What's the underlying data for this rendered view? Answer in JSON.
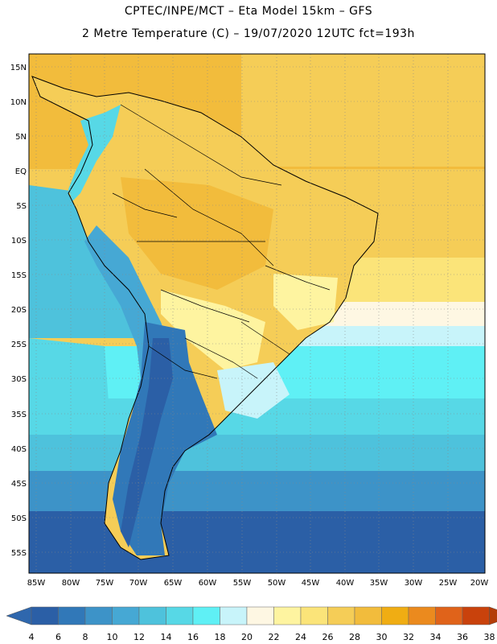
{
  "title": {
    "line1": "CPTEC/INPE/MCT –  Eta Model 15km – GFS",
    "line2": "2 Metre Temperature (C) – 19/07/2020 12UTC fct=193h"
  },
  "map": {
    "lat_labels": [
      "15N",
      "10N",
      "5N",
      "EQ",
      "5S",
      "10S",
      "15S",
      "20S",
      "25S",
      "30S",
      "35S",
      "40S",
      "45S",
      "50S",
      "55S"
    ],
    "lon_labels": [
      "85W",
      "80W",
      "75W",
      "70W",
      "65W",
      "60W",
      "55W",
      "50W",
      "45W",
      "40W",
      "35W",
      "30W",
      "25W",
      "20W"
    ],
    "grid_lines": true
  },
  "colorbar": {
    "labels": [
      "4",
      "6",
      "8",
      "10",
      "12",
      "14",
      "16",
      "18",
      "20",
      "22",
      "24",
      "26",
      "28",
      "30",
      "32",
      "34",
      "36",
      "38"
    ],
    "colors": [
      "#2b5fa6",
      "#3178b8",
      "#3d93c8",
      "#46a8d4",
      "#4ec2dc",
      "#57d8e6",
      "#5ff0f5",
      "#c8f4fa",
      "#fef7e3",
      "#fef4a0",
      "#fbe479",
      "#f5cd57",
      "#f2bc3c",
      "#f0ad13",
      "#eb8a1e",
      "#e0631a",
      "#c9420c"
    ],
    "arrow_left_color": "#2f67ad",
    "arrow_right_color": "#b43d09"
  }
}
